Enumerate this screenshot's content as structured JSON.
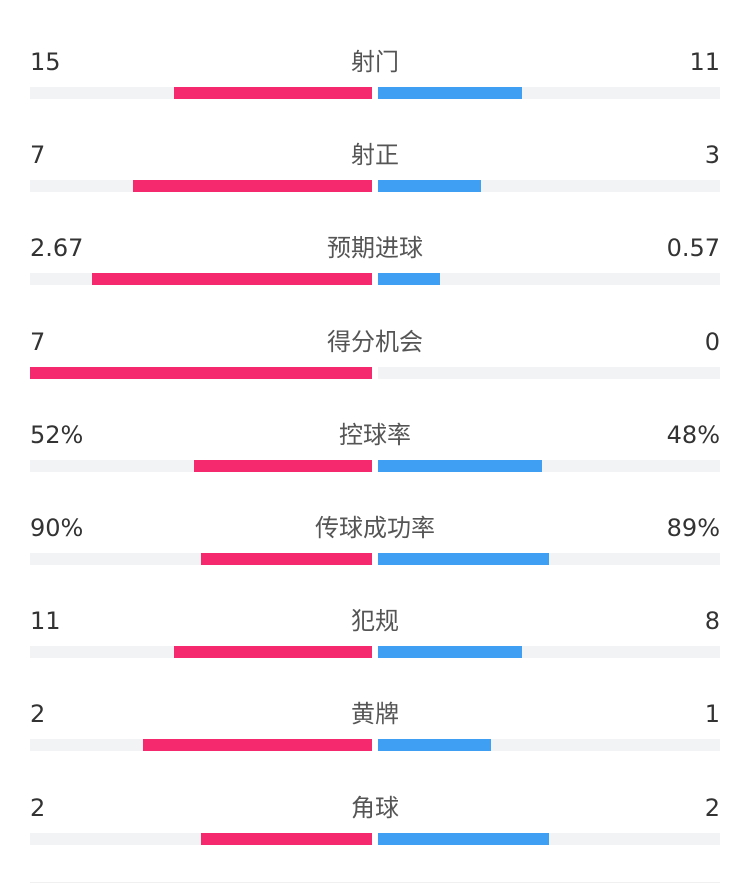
{
  "colors": {
    "home": "#f5296e",
    "away": "#3f9ff3",
    "track": "#f2f3f5"
  },
  "chart_data": {
    "type": "bar",
    "orientation": "horizontal-diverging",
    "categories": [
      "射门",
      "射正",
      "预期进球",
      "得分机会",
      "控球率",
      "传球成功率",
      "犯规",
      "黄牌",
      "角球"
    ],
    "home_labels": [
      "15",
      "7",
      "2.67",
      "7",
      "52%",
      "90%",
      "11",
      "2",
      "2"
    ],
    "away_labels": [
      "11",
      "3",
      "0.57",
      "0",
      "48%",
      "89%",
      "8",
      "1",
      "2"
    ],
    "series": [
      {
        "values": [
          15,
          7,
          2.67,
          7,
          52,
          90,
          11,
          2,
          2
        ]
      },
      {
        "values": [
          11,
          3,
          0.57,
          0,
          48,
          89,
          8,
          1,
          2
        ]
      }
    ],
    "fill_fraction_home": [
      0.58,
      0.7,
      0.82,
      1.0,
      0.52,
      0.5,
      0.58,
      0.67,
      0.5
    ],
    "fill_fraction_away": [
      0.42,
      0.3,
      0.18,
      0.0,
      0.48,
      0.5,
      0.42,
      0.33,
      0.5
    ]
  }
}
